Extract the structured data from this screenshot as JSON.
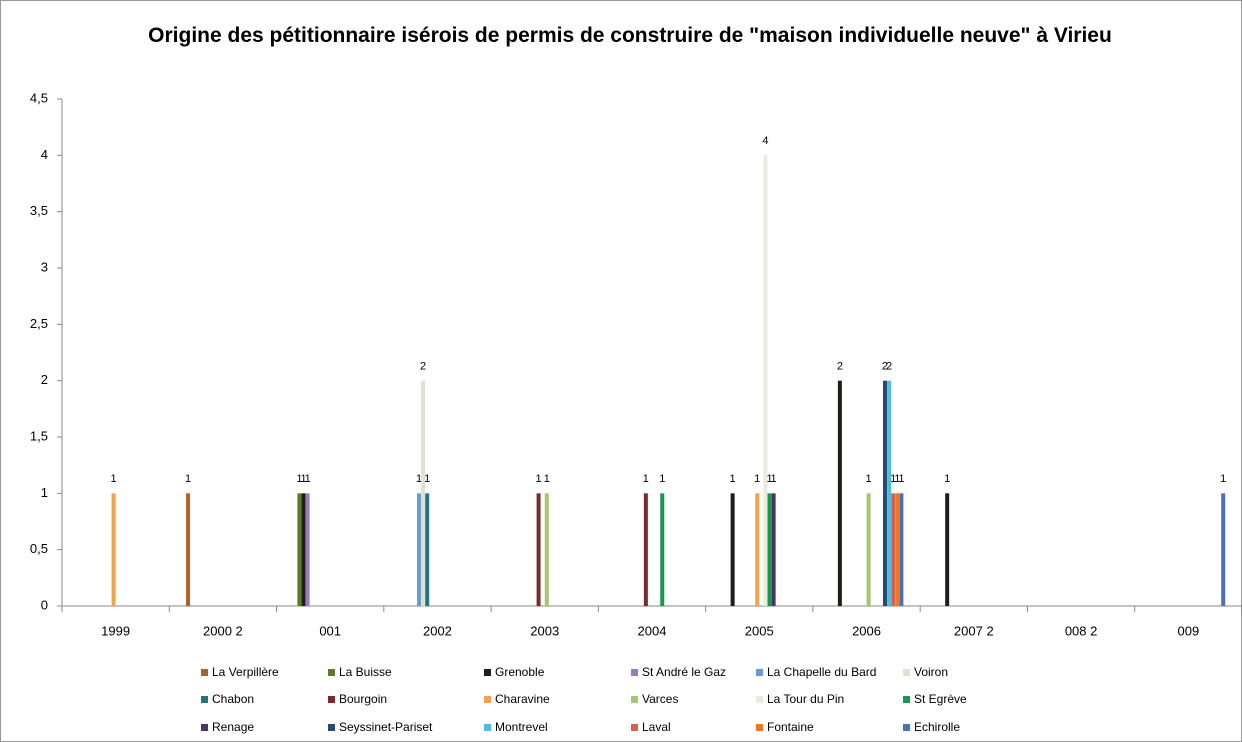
{
  "chart_data": {
    "type": "bar",
    "title": "Origine des pétitionnaire isérois de permis de construire de \"maison individuelle neuve\" à Virieu",
    "categories": [
      "1999",
      "2000 2",
      "001",
      "2002",
      "2003",
      "2004",
      "2005",
      "2006",
      "2007 2",
      "008 2",
      "009"
    ],
    "series": [
      {
        "name": "La Verpillère",
        "color": "#b0602a",
        "values": [
          null,
          1,
          null,
          null,
          null,
          null,
          null,
          null,
          null,
          null,
          null
        ]
      },
      {
        "name": "La Buisse",
        "color": "#5b7a2c",
        "values": [
          null,
          null,
          1,
          null,
          null,
          null,
          null,
          null,
          null,
          null,
          null
        ]
      },
      {
        "name": "Grenoble",
        "color": "#1e1e14",
        "values": [
          null,
          null,
          1,
          null,
          null,
          null,
          1,
          2,
          1,
          null,
          null
        ]
      },
      {
        "name": "St André le Gaz",
        "color": "#9a7cc0",
        "values": [
          null,
          null,
          1,
          null,
          null,
          null,
          null,
          null,
          null,
          null,
          null
        ]
      },
      {
        "name": "La Chapelle du Bard",
        "color": "#6b9bd0",
        "values": [
          null,
          null,
          null,
          1,
          null,
          null,
          null,
          null,
          null,
          null,
          null
        ]
      },
      {
        "name": "Voiron",
        "color": "#d8e6d0",
        "values": [
          null,
          null,
          null,
          2,
          null,
          null,
          null,
          null,
          null,
          null,
          null
        ]
      },
      {
        "name": "Chabon",
        "color": "#2b7280",
        "values": [
          null,
          null,
          null,
          1,
          null,
          null,
          null,
          null,
          null,
          null,
          null
        ]
      },
      {
        "name": "Bourgoin",
        "color": "#7a2a2a",
        "values": [
          null,
          null,
          null,
          null,
          1,
          1,
          null,
          null,
          null,
          null,
          null
        ]
      },
      {
        "name": "Charavine",
        "color": "#f5a24a",
        "values": [
          1,
          null,
          null,
          null,
          null,
          null,
          1,
          null,
          null,
          null,
          null
        ]
      },
      {
        "name": "Varces",
        "color": "#a8c56a",
        "values": [
          null,
          null,
          null,
          null,
          1,
          null,
          null,
          1,
          null,
          null,
          null
        ]
      },
      {
        "name": "La Tour du Pin",
        "color": "#ebeadf",
        "values": [
          null,
          null,
          null,
          null,
          null,
          null,
          4,
          null,
          null,
          null,
          null
        ]
      },
      {
        "name": "St Egrève",
        "color": "#17984a",
        "values": [
          null,
          null,
          null,
          null,
          null,
          1,
          1,
          null,
          null,
          null,
          null
        ]
      },
      {
        "name": "Renage",
        "color": "#4b3560",
        "values": [
          null,
          null,
          null,
          null,
          null,
          null,
          1,
          null,
          null,
          null,
          null
        ]
      },
      {
        "name": "Seyssinet-Pariset",
        "color": "#294a70",
        "values": [
          null,
          null,
          null,
          null,
          null,
          null,
          null,
          2,
          null,
          null,
          null
        ]
      },
      {
        "name": "Montrevel",
        "color": "#4ebee0",
        "values": [
          null,
          null,
          null,
          null,
          null,
          null,
          null,
          2,
          null,
          null,
          null
        ]
      },
      {
        "name": "Laval",
        "color": "#d8604e",
        "values": [
          null,
          null,
          null,
          null,
          null,
          null,
          null,
          1,
          null,
          null,
          null
        ]
      },
      {
        "name": "Fontaine",
        "color": "#f07820",
        "values": [
          null,
          null,
          null,
          null,
          null,
          null,
          null,
          1,
          null,
          null,
          null
        ]
      },
      {
        "name": "Echirolle",
        "color": "#4a70b5",
        "values": [
          null,
          null,
          null,
          null,
          null,
          null,
          null,
          1,
          null,
          null,
          1
        ]
      }
    ],
    "ylim": [
      0,
      4.5
    ],
    "yticks": [
      0,
      {
        "value": 0.5,
        "label": "0,5"
      },
      1,
      {
        "value": 1.5,
        "label": "1,5"
      },
      2,
      {
        "value": 2.5,
        "label": "2,5"
      },
      3,
      {
        "value": 3.5,
        "label": "3,5"
      },
      4,
      {
        "value": 4.5,
        "label": "4,5"
      }
    ],
    "grid": false,
    "legend": "bottom"
  }
}
